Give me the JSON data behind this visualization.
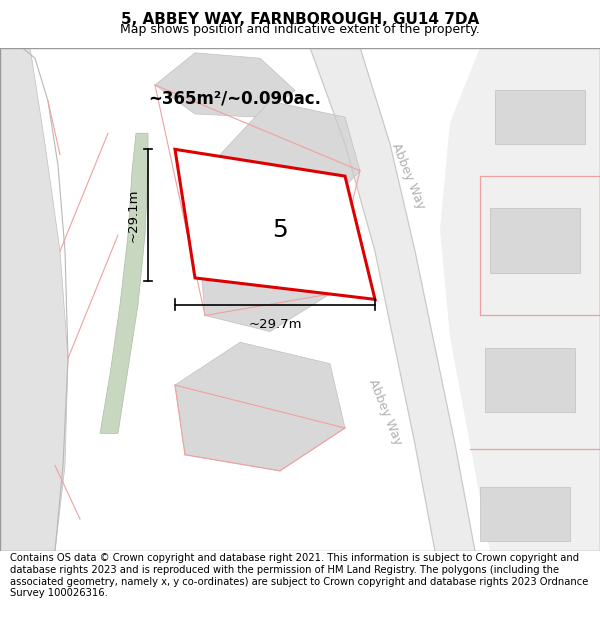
{
  "title": "5, ABBEY WAY, FARNBOROUGH, GU14 7DA",
  "subtitle": "Map shows position and indicative extent of the property.",
  "footer": "Contains OS data © Crown copyright and database right 2021. This information is subject to Crown copyright and database rights 2023 and is reproduced with the permission of HM Land Registry. The polygons (including the associated geometry, namely x, y co-ordinates) are subject to Crown copyright and database rights 2023 Ordnance Survey 100026316.",
  "area_label": "~365m²/~0.090ac.",
  "number_label": "5",
  "dim_h_label": "~29.1m",
  "dim_w_label": "~29.7m",
  "red_color": "#dd0000",
  "pink_color": "#f0a0a0",
  "green_color": "#c8d8c0",
  "road_gray": "#c8c8c8",
  "block_gray": "#d8d8d8",
  "map_bg": "#f8f8f8",
  "title_fontsize": 11,
  "subtitle_fontsize": 9,
  "footer_fontsize": 7.2,
  "abbey_way_label_color": "#b0b0b0",
  "abbey_way_label_fontsize": 9
}
